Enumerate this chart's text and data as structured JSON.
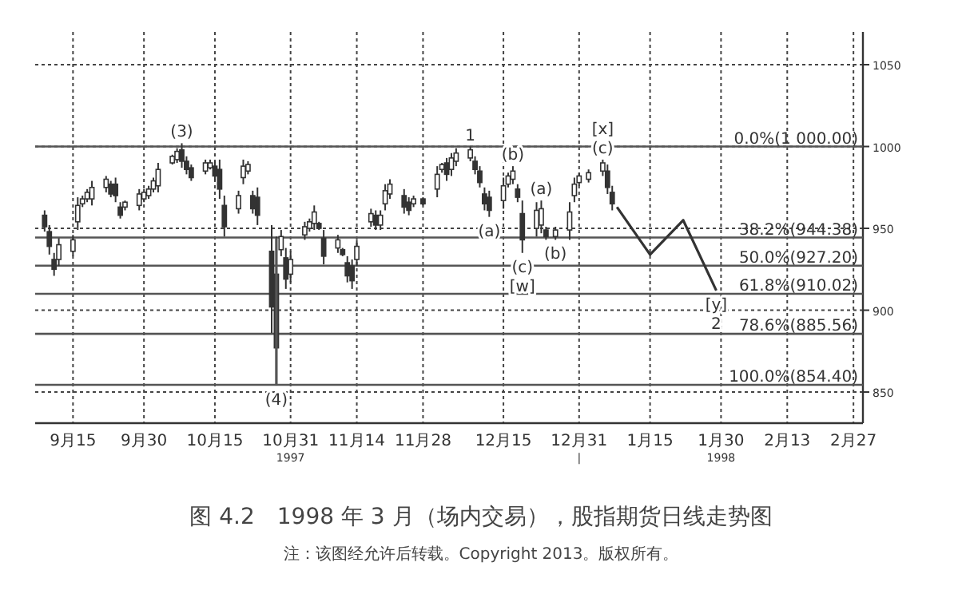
{
  "chart_data": {
    "type": "candlestick",
    "color": "#333333",
    "x": [
      "1997-09-09",
      "1997-09-10",
      "1997-09-11",
      "1997-09-12",
      "1997-09-15",
      "1997-09-16",
      "1997-09-17",
      "1997-09-18",
      "1997-09-19",
      "1997-09-22",
      "1997-09-23",
      "1997-09-24",
      "1997-09-25",
      "1997-09-26",
      "1997-09-29",
      "1997-09-30",
      "1997-10-01",
      "1997-10-02",
      "1997-10-03",
      "1997-10-06",
      "1997-10-07",
      "1997-10-08",
      "1997-10-09",
      "1997-10-10",
      "1997-10-13",
      "1997-10-14",
      "1997-10-15",
      "1997-10-16",
      "1997-10-17",
      "1997-10-20",
      "1997-10-21",
      "1997-10-22",
      "1997-10-23",
      "1997-10-24",
      "1997-10-27",
      "1997-10-28",
      "1997-10-29",
      "1997-10-30",
      "1997-10-31",
      "1997-11-03",
      "1997-11-04",
      "1997-11-05",
      "1997-11-06",
      "1997-11-07",
      "1997-11-10",
      "1997-11-11",
      "1997-11-12",
      "1997-11-13",
      "1997-11-14",
      "1997-11-17",
      "1997-11-18",
      "1997-11-19",
      "1997-11-20",
      "1997-11-21",
      "1997-11-24",
      "1997-11-25",
      "1997-11-26",
      "1997-11-28",
      "1997-12-01",
      "1997-12-02",
      "1997-12-03",
      "1997-12-04",
      "1997-12-05",
      "1997-12-08",
      "1997-12-09",
      "1997-12-10",
      "1997-12-11",
      "1997-12-12",
      "1997-12-15",
      "1997-12-16",
      "1997-12-17",
      "1997-12-18",
      "1997-12-19",
      "1997-12-22",
      "1997-12-23",
      "1997-12-24",
      "1997-12-26",
      "1997-12-29",
      "1997-12-30",
      "1997-12-31",
      "1998-01-02",
      "1998-01-05",
      "1998-01-06",
      "1998-01-07"
    ],
    "ohlc": [
      [
        958,
        961,
        948,
        951
      ],
      [
        948,
        952,
        934,
        939
      ],
      [
        931,
        935,
        921,
        925
      ],
      [
        931,
        944,
        927,
        940
      ],
      [
        936,
        946,
        933,
        943
      ],
      [
        954,
        969,
        949,
        964
      ],
      [
        965,
        970,
        963,
        968
      ],
      [
        968,
        974,
        966,
        972
      ],
      [
        968,
        979,
        964,
        975
      ],
      [
        975,
        982,
        972,
        980
      ],
      [
        977,
        979,
        969,
        971
      ],
      [
        977,
        981,
        966,
        970
      ],
      [
        963,
        966,
        956,
        958
      ],
      [
        963,
        967,
        961,
        966
      ],
      [
        964,
        974,
        961,
        971
      ],
      [
        968,
        974,
        966,
        972
      ],
      [
        970,
        976,
        968,
        974
      ],
      [
        974,
        981,
        972,
        979
      ],
      [
        976,
        990,
        972,
        986
      ],
      [
        990,
        995,
        989,
        994
      ],
      [
        992,
        999,
        990,
        997
      ],
      [
        998,
        1002,
        987,
        991
      ],
      [
        991,
        994,
        983,
        986
      ],
      [
        987,
        989,
        979,
        981
      ],
      [
        985,
        992,
        983,
        990
      ],
      [
        987,
        992,
        986,
        990
      ],
      [
        988,
        991,
        979,
        982
      ],
      [
        986,
        992,
        968,
        974
      ],
      [
        964,
        970,
        945,
        951
      ],
      [
        962,
        973,
        959,
        970
      ],
      [
        981,
        992,
        977,
        988
      ],
      [
        985,
        991,
        983,
        989
      ],
      [
        970,
        973,
        959,
        962
      ],
      [
        969,
        975,
        952,
        958
      ],
      [
        936,
        952,
        886,
        902
      ],
      [
        922,
        945,
        854,
        877
      ],
      [
        937,
        949,
        933,
        945
      ],
      [
        932,
        938,
        913,
        919
      ],
      [
        922,
        936,
        917,
        931
      ],
      [
        946,
        954,
        943,
        951
      ],
      [
        950,
        956,
        948,
        954
      ],
      [
        953,
        964,
        949,
        960
      ],
      [
        953,
        954,
        949,
        950
      ],
      [
        944,
        949,
        928,
        933
      ],
      [
        938,
        946,
        935,
        943
      ],
      [
        937,
        938,
        933,
        934
      ],
      [
        929,
        933,
        917,
        921
      ],
      [
        927,
        931,
        913,
        918
      ],
      [
        931,
        943,
        927,
        939
      ],
      [
        954,
        962,
        951,
        959
      ],
      [
        958,
        961,
        949,
        952
      ],
      [
        952,
        961,
        949,
        958
      ],
      [
        965,
        977,
        961,
        973
      ],
      [
        971,
        980,
        968,
        977
      ],
      [
        970,
        974,
        959,
        963
      ],
      [
        966,
        969,
        958,
        961
      ],
      [
        965,
        970,
        963,
        968
      ],
      [
        968,
        969,
        964,
        965
      ],
      [
        974,
        988,
        969,
        983
      ],
      [
        986,
        990,
        984,
        989
      ],
      [
        990,
        993,
        979,
        983
      ],
      [
        986,
        996,
        982,
        993
      ],
      [
        991,
        999,
        988,
        996
      ],
      [
        993,
        1000,
        991,
        998
      ],
      [
        991,
        994,
        983,
        986
      ],
      [
        985,
        988,
        975,
        978
      ],
      [
        971,
        975,
        961,
        965
      ],
      [
        969,
        973,
        957,
        961
      ],
      [
        967,
        981,
        962,
        976
      ],
      [
        977,
        984,
        975,
        982
      ],
      [
        980,
        988,
        977,
        985
      ],
      [
        974,
        977,
        966,
        969
      ],
      [
        959,
        967,
        935,
        943
      ],
      [
        950,
        966,
        945,
        961
      ],
      [
        952,
        967,
        947,
        962
      ],
      [
        949,
        951,
        943,
        945
      ],
      [
        945,
        951,
        943,
        949
      ],
      [
        949,
        966,
        943,
        960
      ],
      [
        970,
        981,
        966,
        977
      ],
      [
        978,
        984,
        976,
        982
      ],
      [
        980,
        986,
        978,
        984
      ],
      [
        985,
        992,
        982,
        990
      ],
      [
        985,
        989,
        971,
        975
      ],
      [
        972,
        976,
        961,
        965
      ]
    ],
    "series": [
      {
        "type": "line",
        "color": "#333333",
        "x": [
          "1998-01-08",
          "1998-01-15",
          "1998-01-22",
          "1998-01-29"
        ],
        "values": [
          963,
          934,
          955,
          912
        ]
      },
      {
        "type": "line",
        "color": "#555555",
        "x": [
          "1997-10-28",
          "1997-10-28"
        ],
        "values": [
          854,
          944
        ]
      }
    ],
    "xlim": [
      "1997-09-07",
      "1998-03-01"
    ],
    "ylim": [
      831,
      1070
    ],
    "xticks": [
      {
        "value": "1997-09-15",
        "label": "9月15"
      },
      {
        "value": "1997-09-30",
        "label": "9月30"
      },
      {
        "value": "1997-10-15",
        "label": "10月15"
      },
      {
        "value": "1997-10-31",
        "label": "10月31\n1997"
      },
      {
        "value": "1997-11-14",
        "label": "11月14"
      },
      {
        "value": "1997-11-28",
        "label": "11月28"
      },
      {
        "value": "1997-12-15",
        "label": "12月15"
      },
      {
        "value": "1997-12-31",
        "label": "12月31\n|"
      },
      {
        "value": "1998-01-15",
        "label": "1月15"
      },
      {
        "value": "1998-01-30",
        "label": "1月30\n1998"
      },
      {
        "value": "1998-02-13",
        "label": "2月13"
      },
      {
        "value": "1998-02-27",
        "label": "2月27"
      }
    ],
    "yticks": [
      850,
      900,
      950,
      1000,
      1050
    ],
    "grid": true,
    "ref_lines": [
      {
        "axis": "y",
        "value": 1000,
        "label": "0.0%(1 000.00)",
        "color": "#555555"
      },
      {
        "axis": "y",
        "value": 944.38,
        "label": "38.2%(944.38)",
        "color": "#555555"
      },
      {
        "axis": "y",
        "value": 927.2,
        "label": "50.0%(927.20)",
        "color": "#555555"
      },
      {
        "axis": "y",
        "value": 910.02,
        "label": "61.8%(910.02)",
        "color": "#555555"
      },
      {
        "axis": "y",
        "value": 885.56,
        "label": "78.6%(885.56)",
        "color": "#555555"
      },
      {
        "axis": "y",
        "value": 854.4,
        "label": "100.0%(854.40)",
        "color": "#555555"
      }
    ],
    "annotations": [
      {
        "text": "(3)",
        "x": "1997-10-08",
        "y": 1002
      },
      {
        "text": "(4)",
        "x": "1997-10-28",
        "y": 854
      },
      {
        "text": "1",
        "x": "1997-12-08",
        "y": 1000
      },
      {
        "text": "(a)",
        "x": "1997-12-12",
        "y": 957
      },
      {
        "text": "(b)",
        "x": "1997-12-17",
        "y": 988
      },
      {
        "text": "(c)",
        "x": "1997-12-19",
        "y": 935
      },
      {
        "text": "[w]",
        "x": "1997-12-19",
        "y": 935
      },
      {
        "text": "(a)",
        "x": "1997-12-23",
        "y": 967
      },
      {
        "text": "(b)",
        "x": "1997-12-26",
        "y": 943
      },
      {
        "text": "[x]",
        "x": "1998-01-05",
        "y": 992
      },
      {
        "text": "(c)",
        "x": "1998-01-05",
        "y": 992
      },
      {
        "text": "[y]",
        "x": "1998-01-29",
        "y": 912
      },
      {
        "text": "2",
        "x": "1998-01-29",
        "y": 912
      },
      "图 4.2　1998 年 3 月（场内交易），股指期货日线走势图",
      "注：该图经允许后转载。Copyright 2013。版权所有。"
    ]
  }
}
